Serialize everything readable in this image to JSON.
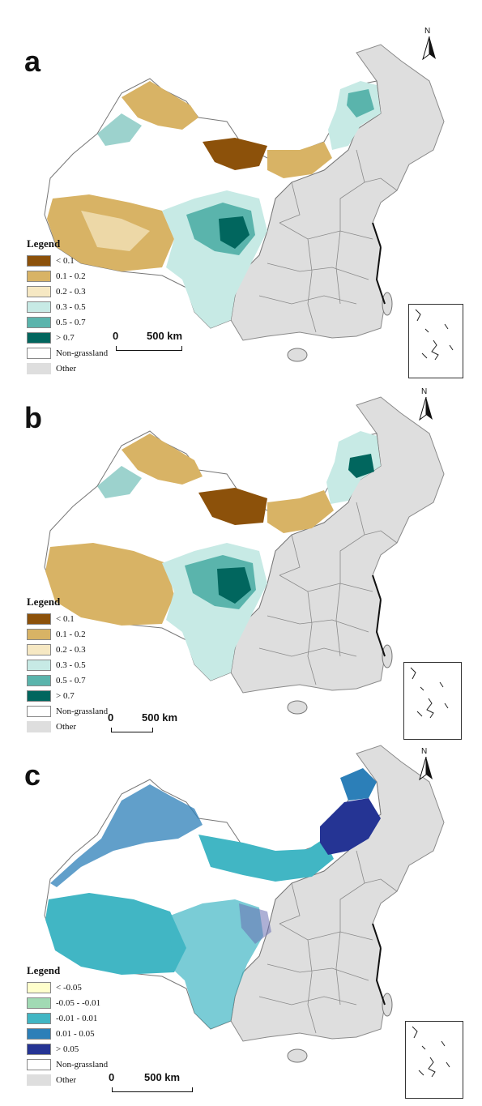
{
  "figure": {
    "north_label": "N",
    "scale": {
      "zero": "0",
      "distance": "500 km"
    },
    "panels": [
      {
        "letter": "a",
        "legend": {
          "title": "Legend",
          "items": [
            {
              "label": "< 0.1",
              "color": "#8c510a"
            },
            {
              "label": "0.1 - 0.2",
              "color": "#d8b365"
            },
            {
              "label": "0.2 - 0.3",
              "color": "#f6e8c3"
            },
            {
              "label": "0.3 - 0.5",
              "color": "#c7eae5"
            },
            {
              "label": "0.5 - 0.7",
              "color": "#5ab4ac"
            },
            {
              "label": "> 0.7",
              "color": "#01665e"
            },
            {
              "label": "Non-grassland",
              "color": "#ffffff"
            },
            {
              "label": "Other",
              "color": "#dedede"
            }
          ]
        }
      },
      {
        "letter": "b",
        "legend": {
          "title": "Legend",
          "items": [
            {
              "label": "< 0.1",
              "color": "#8c510a"
            },
            {
              "label": "0.1 - 0.2",
              "color": "#d8b365"
            },
            {
              "label": "0.2 - 0.3",
              "color": "#f6e8c3"
            },
            {
              "label": "0.3 - 0.5",
              "color": "#c7eae5"
            },
            {
              "label": "0.5 - 0.7",
              "color": "#5ab4ac"
            },
            {
              "label": "> 0.7",
              "color": "#01665e"
            },
            {
              "label": "Non-grassland",
              "color": "#ffffff"
            },
            {
              "label": "Other",
              "color": "#dedede"
            }
          ]
        }
      },
      {
        "letter": "c",
        "legend": {
          "title": "Legend",
          "items": [
            {
              "label": "< -0.05",
              "color": "#ffffcc"
            },
            {
              "label": "-0.05 - -0.01",
              "color": "#a1dab4"
            },
            {
              "label": "-0.01 - 0.01",
              "color": "#41b6c4"
            },
            {
              "label": "0.01 - 0.05",
              "color": "#2c7fb8"
            },
            {
              "label": "> 0.05",
              "color": "#253494"
            },
            {
              "label": "Non-grassland",
              "color": "#ffffff"
            },
            {
              "label": "Other",
              "color": "#dedede"
            }
          ]
        }
      }
    ]
  }
}
